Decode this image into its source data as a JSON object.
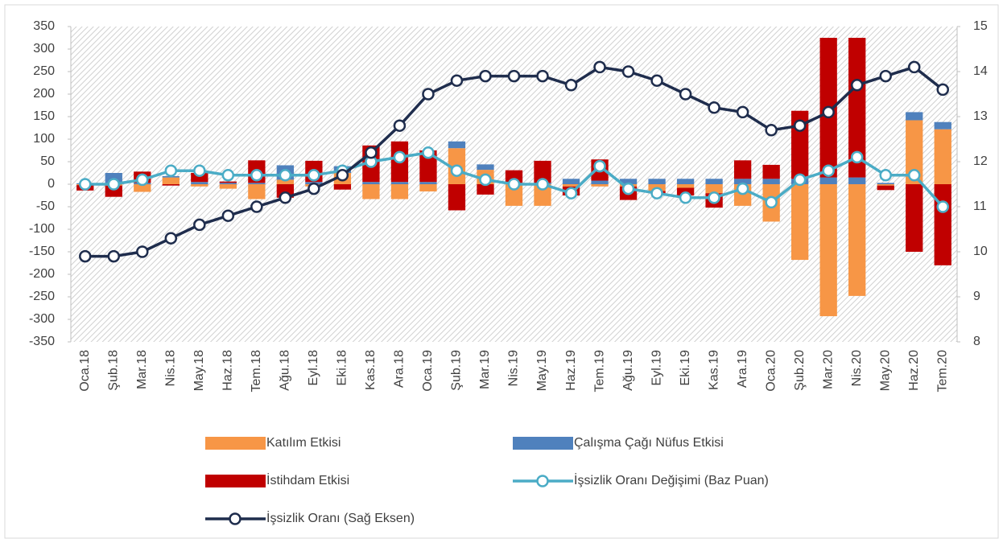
{
  "chart_data": {
    "type": "bar_line",
    "categories": [
      "Oca.18",
      "Şub.18",
      "Mar.18",
      "Nis.18",
      "May.18",
      "Haz.18",
      "Tem.18",
      "Ağu.18",
      "Eyl.18",
      "Eki.18",
      "Kas.18",
      "Ara.18",
      "Oca.19",
      "Şub.19",
      "Mar.19",
      "Nis.19",
      "May.19",
      "Haz.19",
      "Tem.19",
      "Ağu.19",
      "Eyl.19",
      "Eki.19",
      "Kas.19",
      "Ara.19",
      "Oca.20",
      "Şub.20",
      "Mar.20",
      "Nis.20",
      "May.20",
      "Haz.20",
      "Tem.20"
    ],
    "ylim": [
      -350,
      350
    ],
    "yticks": [
      -350,
      -300,
      -250,
      -200,
      -150,
      -100,
      -50,
      0,
      50,
      100,
      150,
      200,
      250,
      300,
      350
    ],
    "y2lim": [
      8,
      15
    ],
    "y2ticks": [
      8,
      9,
      10,
      11,
      12,
      13,
      14,
      15
    ],
    "stacked": true,
    "series": [
      {
        "name": "Katılım Etkisi",
        "type": "bar",
        "color": "#f79646",
        "values": [
          -2,
          -3,
          -17,
          15,
          -5,
          -10,
          -33,
          10,
          -5,
          25,
          -33,
          -33,
          -16,
          80,
          32,
          -48,
          -48,
          -5,
          -5,
          -5,
          -15,
          -8,
          -20,
          -48,
          -83,
          -168,
          -293,
          -248,
          -3,
          142,
          122
        ]
      },
      {
        "name": "Çalışma Çağı Nüfus Etkisi",
        "type": "bar",
        "color": "#4f81bd",
        "values": [
          2,
          25,
          3,
          3,
          5,
          3,
          3,
          32,
          5,
          15,
          5,
          5,
          5,
          15,
          12,
          3,
          3,
          12,
          8,
          12,
          12,
          12,
          12,
          12,
          12,
          12,
          15,
          15,
          3,
          18,
          16
        ]
      },
      {
        "name": "İstihdam Etkisi",
        "type": "bar",
        "color": "#c00000",
        "values": [
          -12,
          -25,
          25,
          -3,
          20,
          3,
          50,
          -30,
          47,
          -12,
          81,
          90,
          70,
          -58,
          -23,
          28,
          49,
          -20,
          47,
          -30,
          -5,
          -17,
          -32,
          41,
          31,
          151,
          310,
          310,
          -10,
          -150,
          -180
        ]
      },
      {
        "name": "İşsizlik Oranı Değişimi (Baz Puan)",
        "type": "line",
        "color": "#4bacc6",
        "values": [
          0,
          0,
          10,
          30,
          30,
          20,
          20,
          20,
          20,
          30,
          50,
          60,
          70,
          30,
          10,
          0,
          0,
          -20,
          40,
          -10,
          -20,
          -30,
          -30,
          -10,
          -40,
          10,
          30,
          60,
          20,
          20,
          -50
        ]
      },
      {
        "name": "İşsizlik Oranı (Sağ Eksen)",
        "type": "line",
        "axis": "y2",
        "color": "#1f2d4d",
        "values": [
          9.9,
          9.9,
          10.0,
          10.3,
          10.6,
          10.8,
          11.0,
          11.2,
          11.4,
          11.7,
          12.2,
          12.8,
          13.5,
          13.8,
          13.9,
          13.9,
          13.9,
          13.7,
          14.1,
          14.0,
          13.8,
          13.5,
          13.2,
          13.1,
          12.7,
          12.8,
          13.1,
          13.7,
          13.9,
          14.1,
          13.6
        ]
      }
    ]
  }
}
